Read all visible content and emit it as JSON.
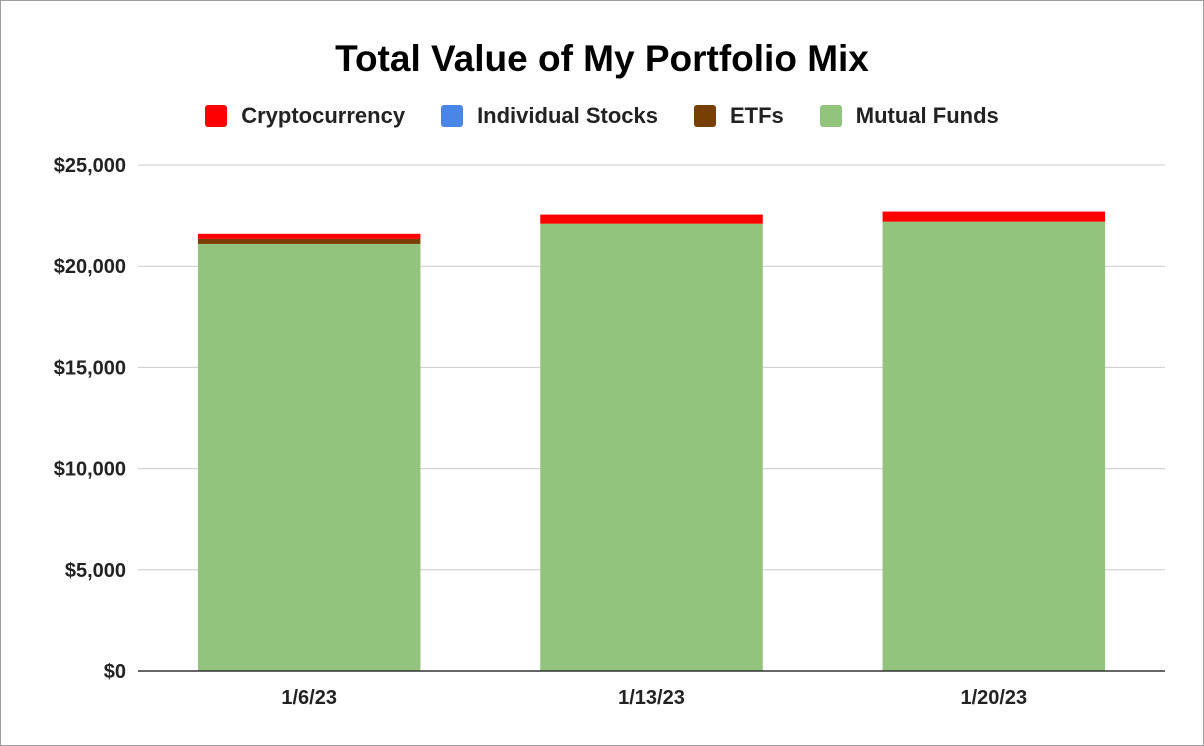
{
  "chart_data": {
    "type": "bar",
    "stacked": true,
    "title": "Total Value of My Portfolio Mix",
    "categories": [
      "1/6/23",
      "1/13/23",
      "1/20/23"
    ],
    "series": [
      {
        "name": "Mutual Funds",
        "color": "#93c47d",
        "values": [
          21100,
          22100,
          22200
        ]
      },
      {
        "name": "ETFs",
        "color": "#783f04",
        "values": [
          250,
          0,
          0
        ]
      },
      {
        "name": "Individual Stocks",
        "color": "#4a86e8",
        "values": [
          0,
          0,
          0
        ]
      },
      {
        "name": "Cryptocurrency",
        "color": "#ff0000",
        "values": [
          250,
          450,
          500
        ]
      }
    ],
    "legend_order": [
      "Cryptocurrency",
      "Individual Stocks",
      "ETFs",
      "Mutual Funds"
    ],
    "legend_position": "top",
    "ylim": [
      0,
      25000
    ],
    "yticks": [
      0,
      5000,
      10000,
      15000,
      20000,
      25000
    ],
    "ytick_labels": [
      "$0",
      "$5,000",
      "$10,000",
      "$15,000",
      "$20,000",
      "$25,000"
    ],
    "grid": true,
    "xlabel": "",
    "ylabel": ""
  }
}
